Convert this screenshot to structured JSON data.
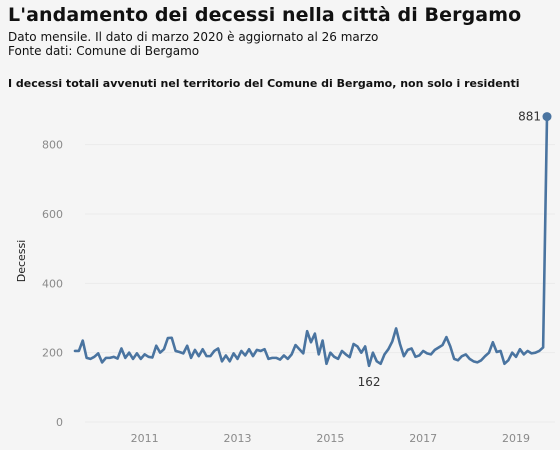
{
  "header": {
    "title": "L'andamento dei decessi nella città di Bergamo",
    "subtitle_line1": "Dato mensile. Il dato di marzo 2020 è aggiornato al 26 marzo",
    "subtitle_line2": "Fonte dati: Comune di Bergamo",
    "caption": "I decessi totali avvenuti nel territorio del Comune di Bergamo, non solo i residenti"
  },
  "chart_data": {
    "type": "line",
    "ylabel": "Decessi",
    "ylim": [
      0,
      900
    ],
    "yticks": [
      0,
      200,
      400,
      600,
      800
    ],
    "xlim": [
      "2010-01",
      "2020-03"
    ],
    "xticks": [
      "2011",
      "2013",
      "2015",
      "2017",
      "2019"
    ],
    "grid": true,
    "color": "#4a74a0",
    "series": [
      {
        "x": [
          "2010-01",
          "2010-02",
          "2010-03",
          "2010-04",
          "2010-05",
          "2010-06",
          "2010-07",
          "2010-08",
          "2010-09",
          "2010-10",
          "2010-11",
          "2010-12",
          "2011-01",
          "2011-02",
          "2011-03",
          "2011-04",
          "2011-05",
          "2011-06",
          "2011-07",
          "2011-08",
          "2011-09",
          "2011-10",
          "2011-11",
          "2011-12",
          "2012-01",
          "2012-02",
          "2012-03",
          "2012-04",
          "2012-05",
          "2012-06",
          "2012-07",
          "2012-08",
          "2012-09",
          "2012-10",
          "2012-11",
          "2012-12",
          "2013-01",
          "2013-02",
          "2013-03",
          "2013-04",
          "2013-05",
          "2013-06",
          "2013-07",
          "2013-08",
          "2013-09",
          "2013-10",
          "2013-11",
          "2013-12",
          "2014-01",
          "2014-02",
          "2014-03",
          "2014-04",
          "2014-05",
          "2014-06",
          "2014-07",
          "2014-08",
          "2014-09",
          "2014-10",
          "2014-11",
          "2014-12",
          "2015-01",
          "2015-02",
          "2015-03",
          "2015-04",
          "2015-05",
          "2015-06",
          "2015-07",
          "2015-08",
          "2015-09",
          "2015-10",
          "2015-11",
          "2015-12",
          "2016-01",
          "2016-02",
          "2016-03",
          "2016-04",
          "2016-05",
          "2016-06",
          "2016-07",
          "2016-08",
          "2016-09",
          "2016-10",
          "2016-11",
          "2016-12",
          "2017-01",
          "2017-02",
          "2017-03",
          "2017-04",
          "2017-05",
          "2017-06",
          "2017-07",
          "2017-08",
          "2017-09",
          "2017-10",
          "2017-11",
          "2017-12",
          "2018-01",
          "2018-02",
          "2018-03",
          "2018-04",
          "2018-05",
          "2018-06",
          "2018-07",
          "2018-08",
          "2018-09",
          "2018-10",
          "2018-11",
          "2018-12",
          "2019-01",
          "2019-02",
          "2019-03",
          "2019-04",
          "2019-05",
          "2019-06",
          "2019-07",
          "2019-08",
          "2019-09",
          "2019-10",
          "2019-11",
          "2019-12",
          "2020-01",
          "2020-02",
          "2020-03"
        ],
        "y": [
          205,
          205,
          235,
          185,
          182,
          188,
          198,
          172,
          185,
          185,
          188,
          183,
          212,
          185,
          200,
          182,
          198,
          182,
          195,
          188,
          186,
          220,
          200,
          210,
          242,
          243,
          205,
          202,
          198,
          220,
          185,
          208,
          190,
          210,
          190,
          190,
          205,
          212,
          175,
          192,
          175,
          198,
          182,
          205,
          192,
          210,
          190,
          208,
          205,
          210,
          182,
          185,
          185,
          180,
          192,
          182,
          195,
          222,
          210,
          198,
          262,
          230,
          255,
          195,
          235,
          168,
          200,
          188,
          182,
          205,
          195,
          187,
          225,
          218,
          200,
          218,
          162,
          200,
          175,
          168,
          195,
          210,
          232,
          270,
          225,
          190,
          208,
          212,
          188,
          192,
          205,
          198,
          195,
          208,
          215,
          222,
          245,
          218,
          182,
          178,
          190,
          195,
          182,
          175,
          172,
          178,
          190,
          200,
          230,
          202,
          205,
          168,
          178,
          200,
          188,
          210,
          195,
          205,
          198,
          200,
          205,
          215,
          881
        ],
        "point_labels": [
          {
            "x": "2016-05",
            "y": 162,
            "text": "162"
          },
          {
            "x": "2020-03",
            "y": 881,
            "text": "881"
          }
        ]
      }
    ]
  }
}
